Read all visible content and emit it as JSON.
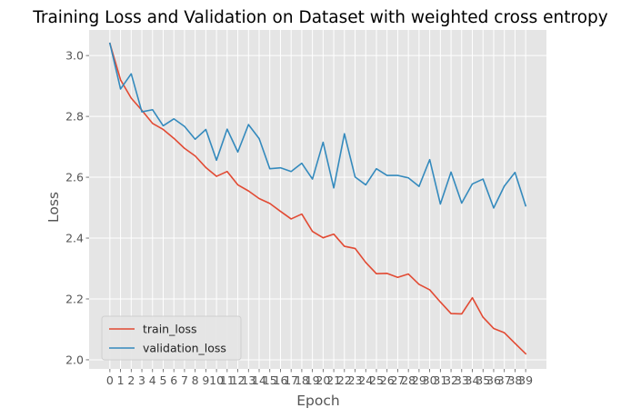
{
  "chart_data": {
    "type": "line",
    "title": "Training Loss and Validation on Dataset with weighted cross entropy",
    "xlabel": "Epoch",
    "ylabel": "Loss",
    "x": [
      0,
      1,
      2,
      3,
      4,
      5,
      6,
      7,
      8,
      9,
      10,
      11,
      12,
      13,
      14,
      15,
      16,
      17,
      18,
      19,
      20,
      21,
      22,
      23,
      24,
      25,
      26,
      27,
      28,
      29,
      30,
      31,
      32,
      33,
      34,
      35,
      36,
      37,
      38,
      39
    ],
    "x_tick_labels": [
      "0",
      "1",
      "2",
      "3",
      "4",
      "5",
      "6",
      "7",
      "8",
      "9",
      "10",
      "11",
      "12",
      "13",
      "14",
      "15",
      "16",
      "17",
      "18",
      "19",
      "20",
      "21",
      "22",
      "23",
      "24",
      "25",
      "26",
      "27",
      "28",
      "29",
      "30",
      "31",
      "32",
      "33",
      "34",
      "35",
      "36",
      "37",
      "38",
      "39"
    ],
    "y_tick_labels": [
      "2.0",
      "2.2",
      "2.4",
      "2.6",
      "2.8",
      "3.0"
    ],
    "y_ticks": [
      2.0,
      2.2,
      2.4,
      2.6,
      2.8,
      3.0
    ],
    "xlim": [
      -1.95,
      40.95
    ],
    "ylim": [
      1.97,
      3.084
    ],
    "grid": true,
    "legend_position": "lower-left",
    "series": [
      {
        "name": "train_loss",
        "color": "#E24A33",
        "values": [
          3.04,
          2.92,
          2.86,
          2.82,
          2.777,
          2.757,
          2.728,
          2.695,
          2.67,
          2.632,
          2.603,
          2.619,
          2.575,
          2.555,
          2.53,
          2.514,
          2.488,
          2.463,
          2.479,
          2.422,
          2.401,
          2.413,
          2.373,
          2.366,
          2.32,
          2.283,
          2.284,
          2.271,
          2.282,
          2.248,
          2.23,
          2.19,
          2.152,
          2.151,
          2.204,
          2.14,
          2.103,
          2.089,
          2.054,
          2.02
        ]
      },
      {
        "name": "validation_loss",
        "color": "#348ABD",
        "values": [
          3.04,
          2.89,
          2.94,
          2.815,
          2.822,
          2.769,
          2.792,
          2.767,
          2.725,
          2.757,
          2.656,
          2.758,
          2.683,
          2.773,
          2.727,
          2.628,
          2.631,
          2.619,
          2.646,
          2.594,
          2.715,
          2.565,
          2.743,
          2.601,
          2.575,
          2.628,
          2.606,
          2.606,
          2.598,
          2.57,
          2.658,
          2.512,
          2.617,
          2.515,
          2.578,
          2.594,
          2.499,
          2.571,
          2.616,
          2.506
        ]
      }
    ]
  }
}
